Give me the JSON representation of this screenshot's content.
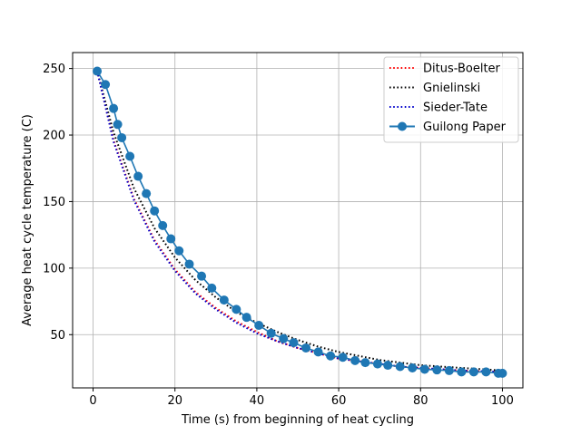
{
  "chart_data": {
    "type": "line",
    "title": "",
    "xlabel": "Time (s) from beginning of heat cycling",
    "ylabel": "Average heat cycle temperature (C)",
    "xlim": [
      -5,
      105
    ],
    "ylim": [
      10,
      262
    ],
    "xticks": [
      0,
      20,
      40,
      60,
      80,
      100
    ],
    "yticks": [
      50,
      100,
      150,
      200,
      250
    ],
    "grid": true,
    "legend_position": "top-right",
    "series": [
      {
        "name": "Ditus-Boelter",
        "style": "dotted",
        "color": "#ff0000",
        "x": [
          1,
          5,
          10,
          15,
          20,
          25,
          30,
          35,
          40,
          45,
          50,
          55,
          60,
          65,
          70,
          75,
          80,
          85,
          90,
          95,
          100
        ],
        "y": [
          248,
          196,
          152,
          121,
          99,
          82,
          70,
          60,
          52,
          45,
          40,
          36,
          32,
          30,
          28,
          26,
          25,
          24,
          23,
          22.5,
          22
        ]
      },
      {
        "name": "Gnielinski",
        "style": "dotted",
        "color": "#000000",
        "x": [
          1,
          5,
          10,
          15,
          20,
          25,
          30,
          35,
          40,
          45,
          50,
          55,
          60,
          65,
          70,
          75,
          80,
          85,
          90,
          95,
          100
        ],
        "y": [
          248,
          202,
          160,
          130,
          108,
          91,
          78,
          67,
          59,
          52,
          46,
          41,
          37,
          34,
          31,
          29,
          27,
          26,
          25,
          24,
          23
        ]
      },
      {
        "name": "Sieder-Tate",
        "style": "dotted",
        "color": "#0000cc",
        "x": [
          1,
          5,
          10,
          15,
          20,
          25,
          30,
          35,
          40,
          45,
          50,
          55,
          60,
          65,
          70,
          75,
          80,
          85,
          90,
          95,
          100
        ],
        "y": [
          248,
          195,
          151,
          120,
          98,
          81,
          69,
          59,
          51,
          45,
          40,
          36,
          32,
          30,
          28,
          26,
          25,
          24,
          23,
          22.5,
          22
        ]
      },
      {
        "name": "Guilong Paper",
        "style": "solid-markers",
        "color": "#1f77b4",
        "x": [
          1,
          3,
          5,
          6,
          7,
          9,
          11,
          13,
          15,
          17,
          19,
          21,
          23.5,
          26.5,
          29,
          32,
          35,
          37.5,
          40.5,
          43.5,
          46.5,
          49,
          52,
          55,
          58,
          61,
          64,
          66.5,
          69.5,
          72,
          75,
          78,
          81,
          84,
          87,
          90,
          93,
          96,
          99,
          100
        ],
        "y": [
          248,
          238,
          220,
          208,
          198,
          184,
          169,
          156,
          143,
          132,
          122,
          113,
          103,
          94,
          85,
          76,
          69,
          63,
          57,
          51,
          47,
          44,
          40,
          37,
          34,
          33,
          30.5,
          29,
          28,
          27,
          26,
          25,
          24,
          23.5,
          23,
          22,
          22,
          22,
          21,
          21
        ]
      }
    ]
  }
}
